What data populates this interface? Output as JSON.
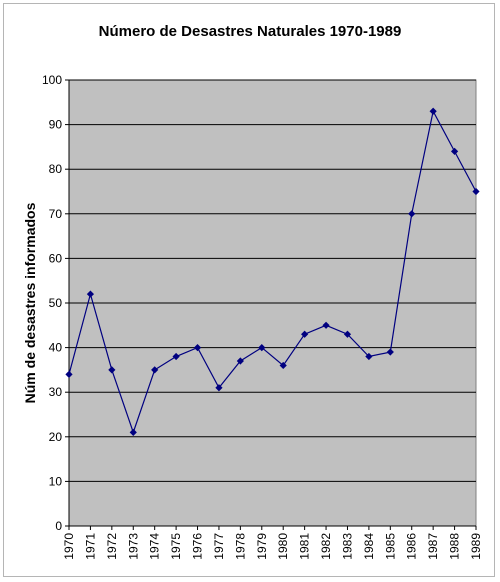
{
  "chart_data": {
    "type": "line",
    "title": "Número de Desastres Naturales 1970-1989",
    "xlabel": "",
    "ylabel": "Núm de desastres informados",
    "categories": [
      "1970",
      "1971",
      "1972",
      "1973",
      "1974",
      "1975",
      "1976",
      "1977",
      "1978",
      "1979",
      "1980",
      "1981",
      "1982",
      "1983",
      "1984",
      "1985",
      "1986",
      "1987",
      "1988",
      "1989"
    ],
    "series": [
      {
        "values": [
          34,
          52,
          35,
          21,
          35,
          38,
          40,
          31,
          37,
          40,
          36,
          43,
          45,
          43,
          38,
          39,
          70,
          93,
          84,
          75
        ]
      }
    ],
    "ylim": [
      0,
      100
    ],
    "yticks": [
      0,
      10,
      20,
      30,
      40,
      50,
      60,
      70,
      80,
      90,
      100
    ],
    "grid": "horizontal",
    "legend": "none",
    "colors": {
      "plot_background": "#c0c0c0",
      "series": "#000080",
      "gridline": "#000000"
    }
  }
}
